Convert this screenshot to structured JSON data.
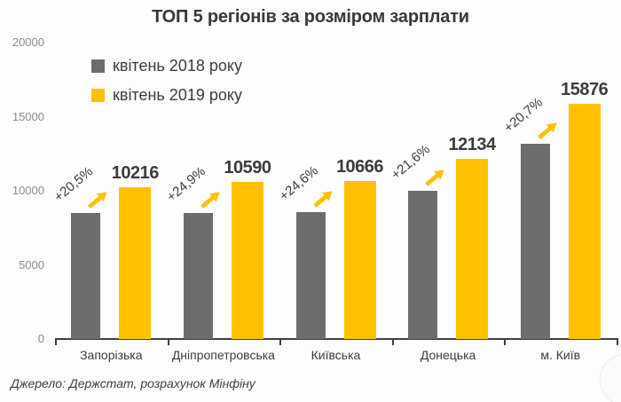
{
  "title": "ТОП 5 регіонів за розміром зарплати",
  "legend": [
    {
      "label": "квітень 2018 року",
      "color": "#6d6d6d"
    },
    {
      "label": "квітень 2019 року",
      "color": "#ffc000"
    }
  ],
  "source": "Джерело: Держстат, розрахунок Мінфіну",
  "colors": {
    "bar_2018": "#6d6d6d",
    "bar_2019": "#ffc000",
    "arrow": "#ffc000",
    "text": "#3c3c3c",
    "axis": "#3f3f3f",
    "ytick_text": "#8c8c8c"
  },
  "chart_data": {
    "type": "bar",
    "title": "ТОП 5 регіонів за розміром зарплати",
    "categories": [
      "Запорізька",
      "Дніпропетровська",
      "Київська",
      "Донецька",
      "м. Київ"
    ],
    "series": [
      {
        "name": "квітень 2018 року",
        "color": "#6d6d6d",
        "values": [
          8478,
          8479,
          8560,
          9979,
          13153
        ]
      },
      {
        "name": "квітень 2019 року",
        "color": "#ffc000",
        "values": [
          10216,
          10590,
          10666,
          12134,
          15876
        ]
      }
    ],
    "value_labels": [
      "10216",
      "10590",
      "10666",
      "12134",
      "15876"
    ],
    "growth_labels": [
      "+20,5%",
      "+24,9%",
      "+24,6%",
      "+21,6%",
      "+20,7%"
    ],
    "ylim": [
      0,
      20000
    ],
    "yticks": [
      0,
      5000,
      10000,
      15000,
      20000
    ],
    "grid": false,
    "legend_position": "top-left",
    "source": "Джерело: Держстат, розрахунок Мінфіну"
  }
}
